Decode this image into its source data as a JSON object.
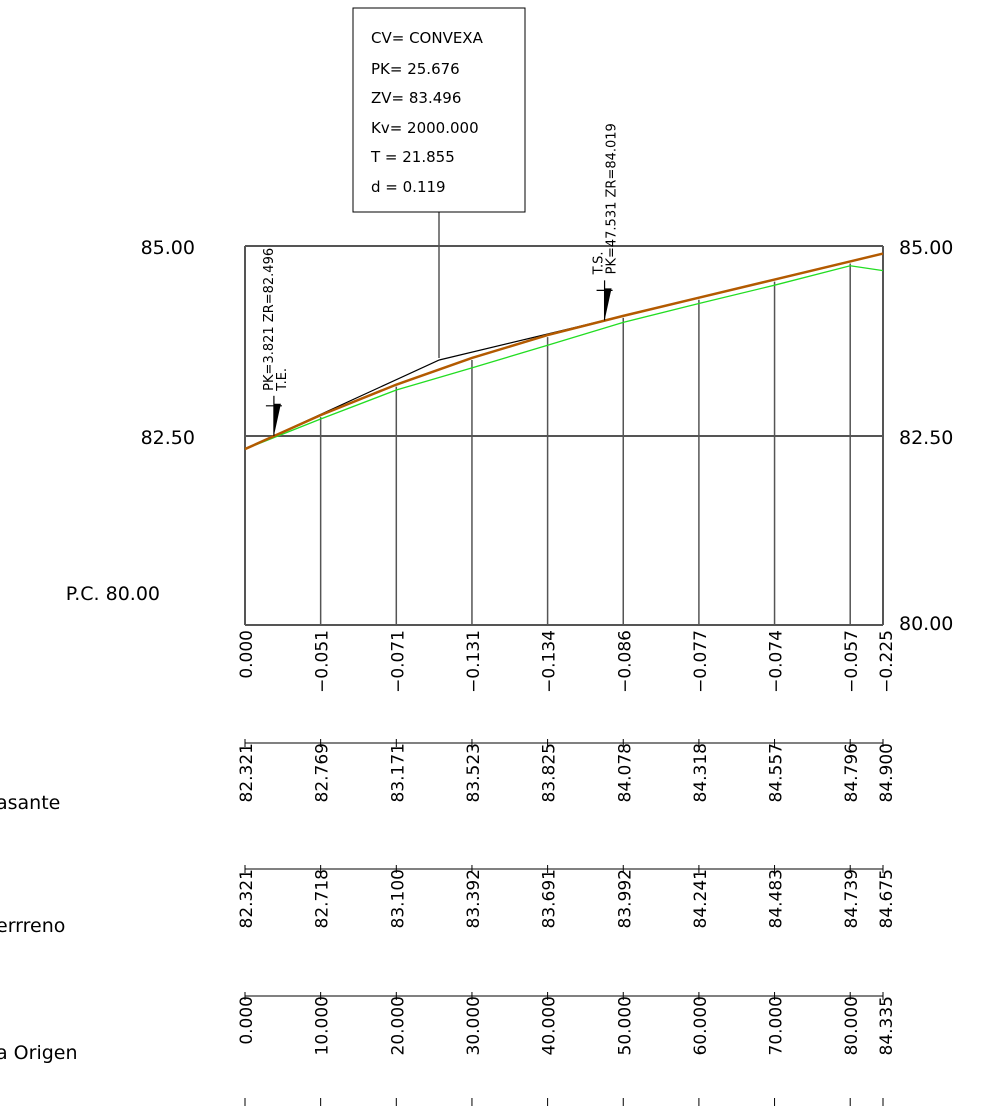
{
  "curve_box": {
    "lines": [
      "CV= CONVEXA",
      "PK= 25.676",
      "ZV= 83.496",
      "Kv= 2000.000",
      "T = 21.855",
      "d = 0.119"
    ]
  },
  "axis": {
    "left_ticks": [
      "85.00",
      "82.50"
    ],
    "right_ticks": [
      "85.00",
      "82.50",
      "80.00"
    ],
    "datum_label": "P.C. 80.00"
  },
  "markers": {
    "te": {
      "pk_label": "PK=3.821 ZR=82.496",
      "name": "T.E.",
      "pk": 3.821,
      "zr": 82.496
    },
    "ts": {
      "pk_label": "PK=47.531 ZR=84.019",
      "name": "T.S.",
      "pk": 47.531,
      "zr": 84.019
    }
  },
  "row_labels": [
    "asante",
    "errreno",
    "a Origen"
  ],
  "colors": {
    "rasante": "#b35a00",
    "terreno": "#22dd22",
    "frame": "#555555",
    "tangent": "#000000"
  },
  "chart_data": {
    "type": "line",
    "xlabel": "",
    "ylabel": "",
    "xlim": [
      0,
      84.335
    ],
    "ylim": [
      80,
      85
    ],
    "stations": [
      0,
      10,
      20,
      30,
      40,
      50,
      60,
      70,
      80,
      84.335
    ],
    "stations_text": [
      "0.000",
      "10.000",
      "20.000",
      "30.000",
      "40.000",
      "50.000",
      "60.000",
      "70.000",
      "80.000",
      "84.335"
    ],
    "series": [
      {
        "values": [
          82.321,
          82.769,
          83.171,
          83.523,
          83.825,
          84.078,
          84.318,
          84.557,
          84.796,
          84.9
        ],
        "values_text": [
          "82.321",
          "82.769",
          "83.171",
          "83.523",
          "83.825",
          "84.078",
          "84.318",
          "84.557",
          "84.796",
          "84.900"
        ]
      },
      {
        "values": [
          82.321,
          82.718,
          83.1,
          83.392,
          83.691,
          83.992,
          84.241,
          84.483,
          84.739,
          84.675
        ],
        "values_text": [
          "82.321",
          "82.718",
          "83.100",
          "83.392",
          "83.691",
          "83.992",
          "84.241",
          "84.483",
          "84.739",
          "84.675"
        ]
      }
    ],
    "differences_text": [
      "0.000",
      "−0.051",
      "−0.071",
      "−0.131",
      "−0.134",
      "−0.086",
      "−0.077",
      "−0.074",
      "−0.057",
      "−0.225"
    ],
    "vertex": {
      "pk": 25.676,
      "z": 83.496
    }
  }
}
